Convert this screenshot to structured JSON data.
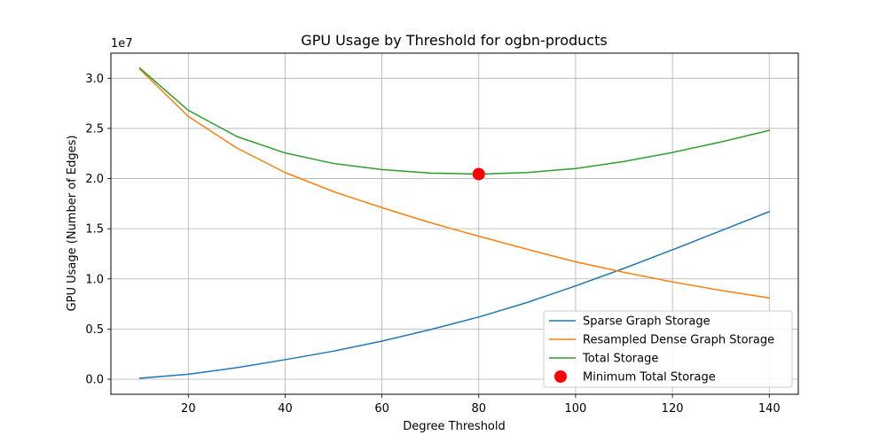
{
  "chart_data": {
    "type": "line",
    "title": "GPU Usage by Threshold for ogbn-products",
    "xlabel": "Degree Threshold",
    "ylabel": "GPU Usage (Number of Edges)",
    "y_offset_label": "1e7",
    "y_scale": 10000000,
    "xlim": [
      4,
      146
    ],
    "ylim": [
      -1500000,
      32500000
    ],
    "grid": true,
    "x_ticks": [
      20,
      40,
      60,
      80,
      100,
      120,
      140
    ],
    "y_ticks": [
      0,
      5000000,
      10000000,
      15000000,
      20000000,
      25000000,
      30000000
    ],
    "y_tick_labels": [
      "0.0",
      "0.5",
      "1.0",
      "1.5",
      "2.0",
      "2.5",
      "3.0"
    ],
    "x": [
      10,
      20,
      30,
      40,
      50,
      60,
      70,
      80,
      90,
      100,
      110,
      120,
      130,
      140
    ],
    "series": [
      {
        "name": "Sparse Graph Storage",
        "color": "#1f77b4",
        "values": [
          100000,
          500000,
          1150000,
          1950000,
          2800000,
          3800000,
          4950000,
          6200000,
          7650000,
          9300000,
          11050000,
          12900000,
          14800000,
          16700000
        ]
      },
      {
        "name": "Resampled Dense Graph Storage",
        "color": "#ff7f0e",
        "values": [
          30900000,
          26200000,
          23050000,
          20600000,
          18700000,
          17100000,
          15600000,
          14250000,
          12950000,
          11700000,
          10650000,
          9700000,
          8850000,
          8100000
        ]
      },
      {
        "name": "Total Storage",
        "color": "#2ca02c",
        "values": [
          31000000,
          26800000,
          24200000,
          22550000,
          21500000,
          20900000,
          20550000,
          20450000,
          20600000,
          21000000,
          21700000,
          22600000,
          23650000,
          24800000
        ]
      }
    ],
    "marker": {
      "name": "Minimum Total Storage",
      "color": "#ff0000",
      "x": 80,
      "y": 20450000
    },
    "legend": {
      "placement": "lower-right",
      "entries": [
        "Sparse Graph Storage",
        "Resampled Dense Graph Storage",
        "Total Storage",
        "Minimum Total Storage"
      ]
    }
  }
}
